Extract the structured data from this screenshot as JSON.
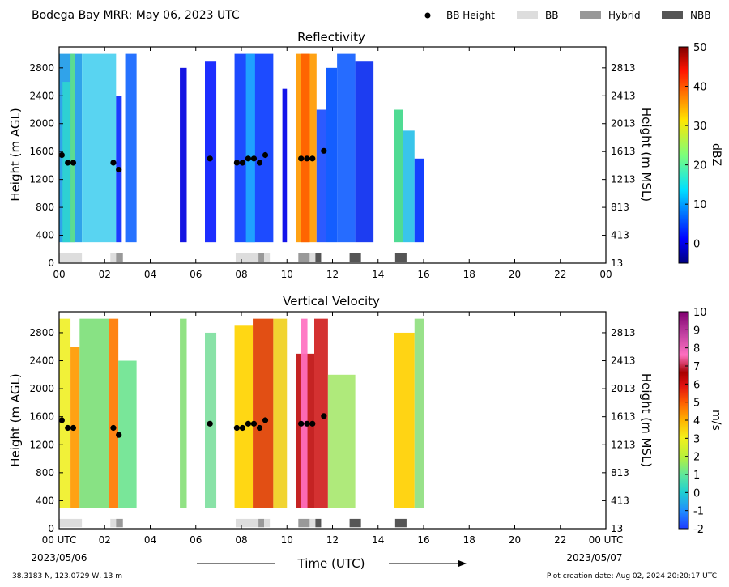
{
  "header": {
    "title": "Bodega Bay MRR:  May 06, 2023 UTC",
    "legend": [
      {
        "label": "BB Height",
        "kind": "dot",
        "color": "#000000"
      },
      {
        "label": "BB",
        "kind": "box",
        "color": "#dddddd"
      },
      {
        "label": "Hybrid",
        "kind": "box",
        "color": "#999999"
      },
      {
        "label": "NBB",
        "kind": "box",
        "color": "#555555"
      }
    ]
  },
  "footer": {
    "coords": "38.3183 N, 123.0729 W, 13 m",
    "created": "Plot creation date: Aug 02, 2024 20:20:17 UTC",
    "start_date": "2023/05/06",
    "end_date": "2023/05/07"
  },
  "chart_data": [
    {
      "type": "heatmap",
      "title": "Reflectivity",
      "xlabel": "",
      "ylabel": "Height (m AGL)",
      "y2label": "Height (m MSL)",
      "xlim": [
        0,
        24
      ],
      "ylim": [
        0,
        3100
      ],
      "x_ticks": [
        "00",
        "02",
        "04",
        "06",
        "08",
        "10",
        "12",
        "14",
        "16",
        "18",
        "20",
        "22",
        "00"
      ],
      "y_ticks": [
        0,
        400,
        800,
        1200,
        1600,
        2000,
        2400,
        2800
      ],
      "y2_ticks": [
        "13",
        "413",
        "813",
        "1213",
        "1613",
        "2013",
        "2413",
        "2813"
      ],
      "colorbar": {
        "label": "dBZ",
        "min": -5,
        "max": 50,
        "ticks": [
          0,
          10,
          20,
          30,
          40,
          50
        ],
        "colormap": "jet"
      },
      "bb_height": [
        {
          "x": 0.12,
          "y": 1550
        },
        {
          "x": 0.38,
          "y": 1440
        },
        {
          "x": 0.62,
          "y": 1440
        },
        {
          "x": 2.38,
          "y": 1440
        },
        {
          "x": 2.62,
          "y": 1340
        },
        {
          "x": 6.62,
          "y": 1500
        },
        {
          "x": 7.8,
          "y": 1440
        },
        {
          "x": 8.05,
          "y": 1440
        },
        {
          "x": 8.3,
          "y": 1500
        },
        {
          "x": 8.55,
          "y": 1500
        },
        {
          "x": 8.8,
          "y": 1440
        },
        {
          "x": 9.05,
          "y": 1550
        },
        {
          "x": 10.62,
          "y": 1500
        },
        {
          "x": 10.88,
          "y": 1500
        },
        {
          "x": 11.12,
          "y": 1500
        },
        {
          "x": 11.62,
          "y": 1610
        }
      ],
      "bb_type_segments": [
        {
          "start": 0.0,
          "end": 1.0,
          "type": "BB"
        },
        {
          "start": 2.25,
          "end": 2.5,
          "type": "BB"
        },
        {
          "start": 2.5,
          "end": 2.8,
          "type": "Hybrid"
        },
        {
          "start": 7.75,
          "end": 8.75,
          "type": "BB"
        },
        {
          "start": 8.75,
          "end": 9.0,
          "type": "Hybrid"
        },
        {
          "start": 9.0,
          "end": 9.25,
          "type": "BB"
        },
        {
          "start": 10.5,
          "end": 11.0,
          "type": "Hybrid"
        },
        {
          "start": 11.0,
          "end": 11.25,
          "type": "BB"
        },
        {
          "start": 11.25,
          "end": 11.5,
          "type": "NBB"
        },
        {
          "start": 12.75,
          "end": 13.25,
          "type": "NBB"
        },
        {
          "start": 14.75,
          "end": 15.25,
          "type": "NBB"
        }
      ]
    },
    {
      "type": "heatmap",
      "title": "Vertical Velocity",
      "xlabel": "Time (UTC)",
      "ylabel": "Height (m AGL)",
      "y2label": "Height (m MSL)",
      "xlim": [
        0,
        24
      ],
      "ylim": [
        0,
        3100
      ],
      "x_ticks": [
        "00 UTC",
        "02",
        "04",
        "06",
        "08",
        "10",
        "12",
        "14",
        "16",
        "18",
        "20",
        "22",
        "00 UTC"
      ],
      "y_ticks": [
        0,
        400,
        800,
        1200,
        1600,
        2000,
        2400,
        2800
      ],
      "y2_ticks": [
        "13",
        "413",
        "813",
        "1213",
        "1613",
        "2013",
        "2413",
        "2813"
      ],
      "colorbar": {
        "label": "m/s",
        "min": -2,
        "max": 10,
        "ticks": [
          -2,
          -1,
          0,
          1,
          2,
          3,
          4,
          5,
          6,
          7,
          8,
          9,
          10
        ],
        "colormap": "velocity"
      },
      "bb_height": [
        {
          "x": 0.12,
          "y": 1550
        },
        {
          "x": 0.38,
          "y": 1440
        },
        {
          "x": 0.62,
          "y": 1440
        },
        {
          "x": 2.38,
          "y": 1440
        },
        {
          "x": 2.62,
          "y": 1340
        },
        {
          "x": 6.62,
          "y": 1500
        },
        {
          "x": 7.8,
          "y": 1440
        },
        {
          "x": 8.05,
          "y": 1440
        },
        {
          "x": 8.3,
          "y": 1500
        },
        {
          "x": 8.55,
          "y": 1500
        },
        {
          "x": 8.8,
          "y": 1440
        },
        {
          "x": 9.05,
          "y": 1550
        },
        {
          "x": 10.62,
          "y": 1500
        },
        {
          "x": 10.88,
          "y": 1500
        },
        {
          "x": 11.12,
          "y": 1500
        },
        {
          "x": 11.62,
          "y": 1610
        }
      ],
      "bb_type_segments": [
        {
          "start": 0.0,
          "end": 1.0,
          "type": "BB"
        },
        {
          "start": 2.25,
          "end": 2.5,
          "type": "BB"
        },
        {
          "start": 2.5,
          "end": 2.8,
          "type": "Hybrid"
        },
        {
          "start": 7.75,
          "end": 8.75,
          "type": "BB"
        },
        {
          "start": 8.75,
          "end": 9.0,
          "type": "Hybrid"
        },
        {
          "start": 9.0,
          "end": 9.25,
          "type": "BB"
        },
        {
          "start": 10.5,
          "end": 11.0,
          "type": "Hybrid"
        },
        {
          "start": 11.0,
          "end": 11.25,
          "type": "BB"
        },
        {
          "start": 11.25,
          "end": 11.5,
          "type": "NBB"
        },
        {
          "start": 12.75,
          "end": 13.25,
          "type": "NBB"
        },
        {
          "start": 14.75,
          "end": 15.25,
          "type": "NBB"
        }
      ]
    }
  ]
}
